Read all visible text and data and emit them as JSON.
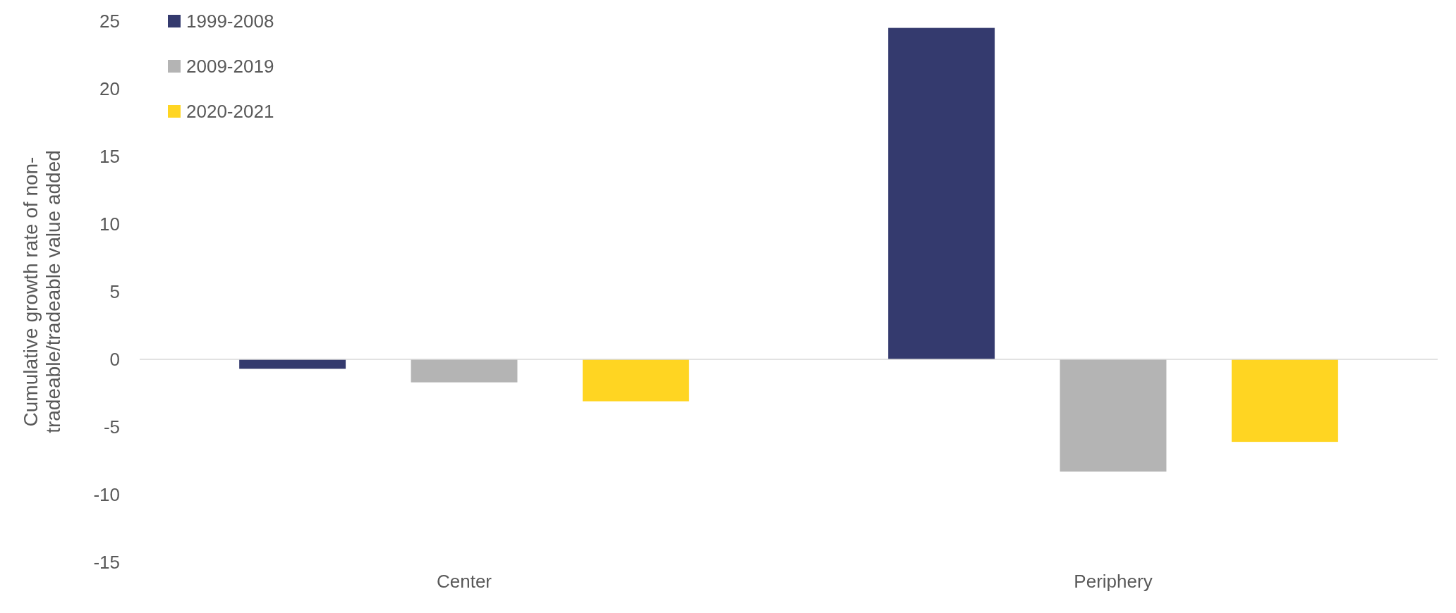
{
  "chart_data": {
    "type": "bar",
    "ylabel": "Cumulative growth rate of non-tradeable/tradeable value added",
    "categories": [
      "Center",
      "Periphery"
    ],
    "series": [
      {
        "name": "1999-2008",
        "color": "#343a6e",
        "values": [
          -0.7,
          24.5
        ]
      },
      {
        "name": "2009-2019",
        "color": "#b4b4b4",
        "values": [
          -1.7,
          -8.3
        ]
      },
      {
        "name": "2020-2021",
        "color": "#ffd522",
        "values": [
          -3.1,
          -6.1
        ]
      }
    ],
    "ylim": [
      -15,
      25
    ],
    "yticks": [
      -15,
      -10,
      -5,
      0,
      5,
      10,
      15,
      20,
      25
    ],
    "legend": "top left",
    "ref_lines": [
      {
        "axis": "y",
        "value": 0,
        "color": "#d9d9d9"
      }
    ]
  }
}
